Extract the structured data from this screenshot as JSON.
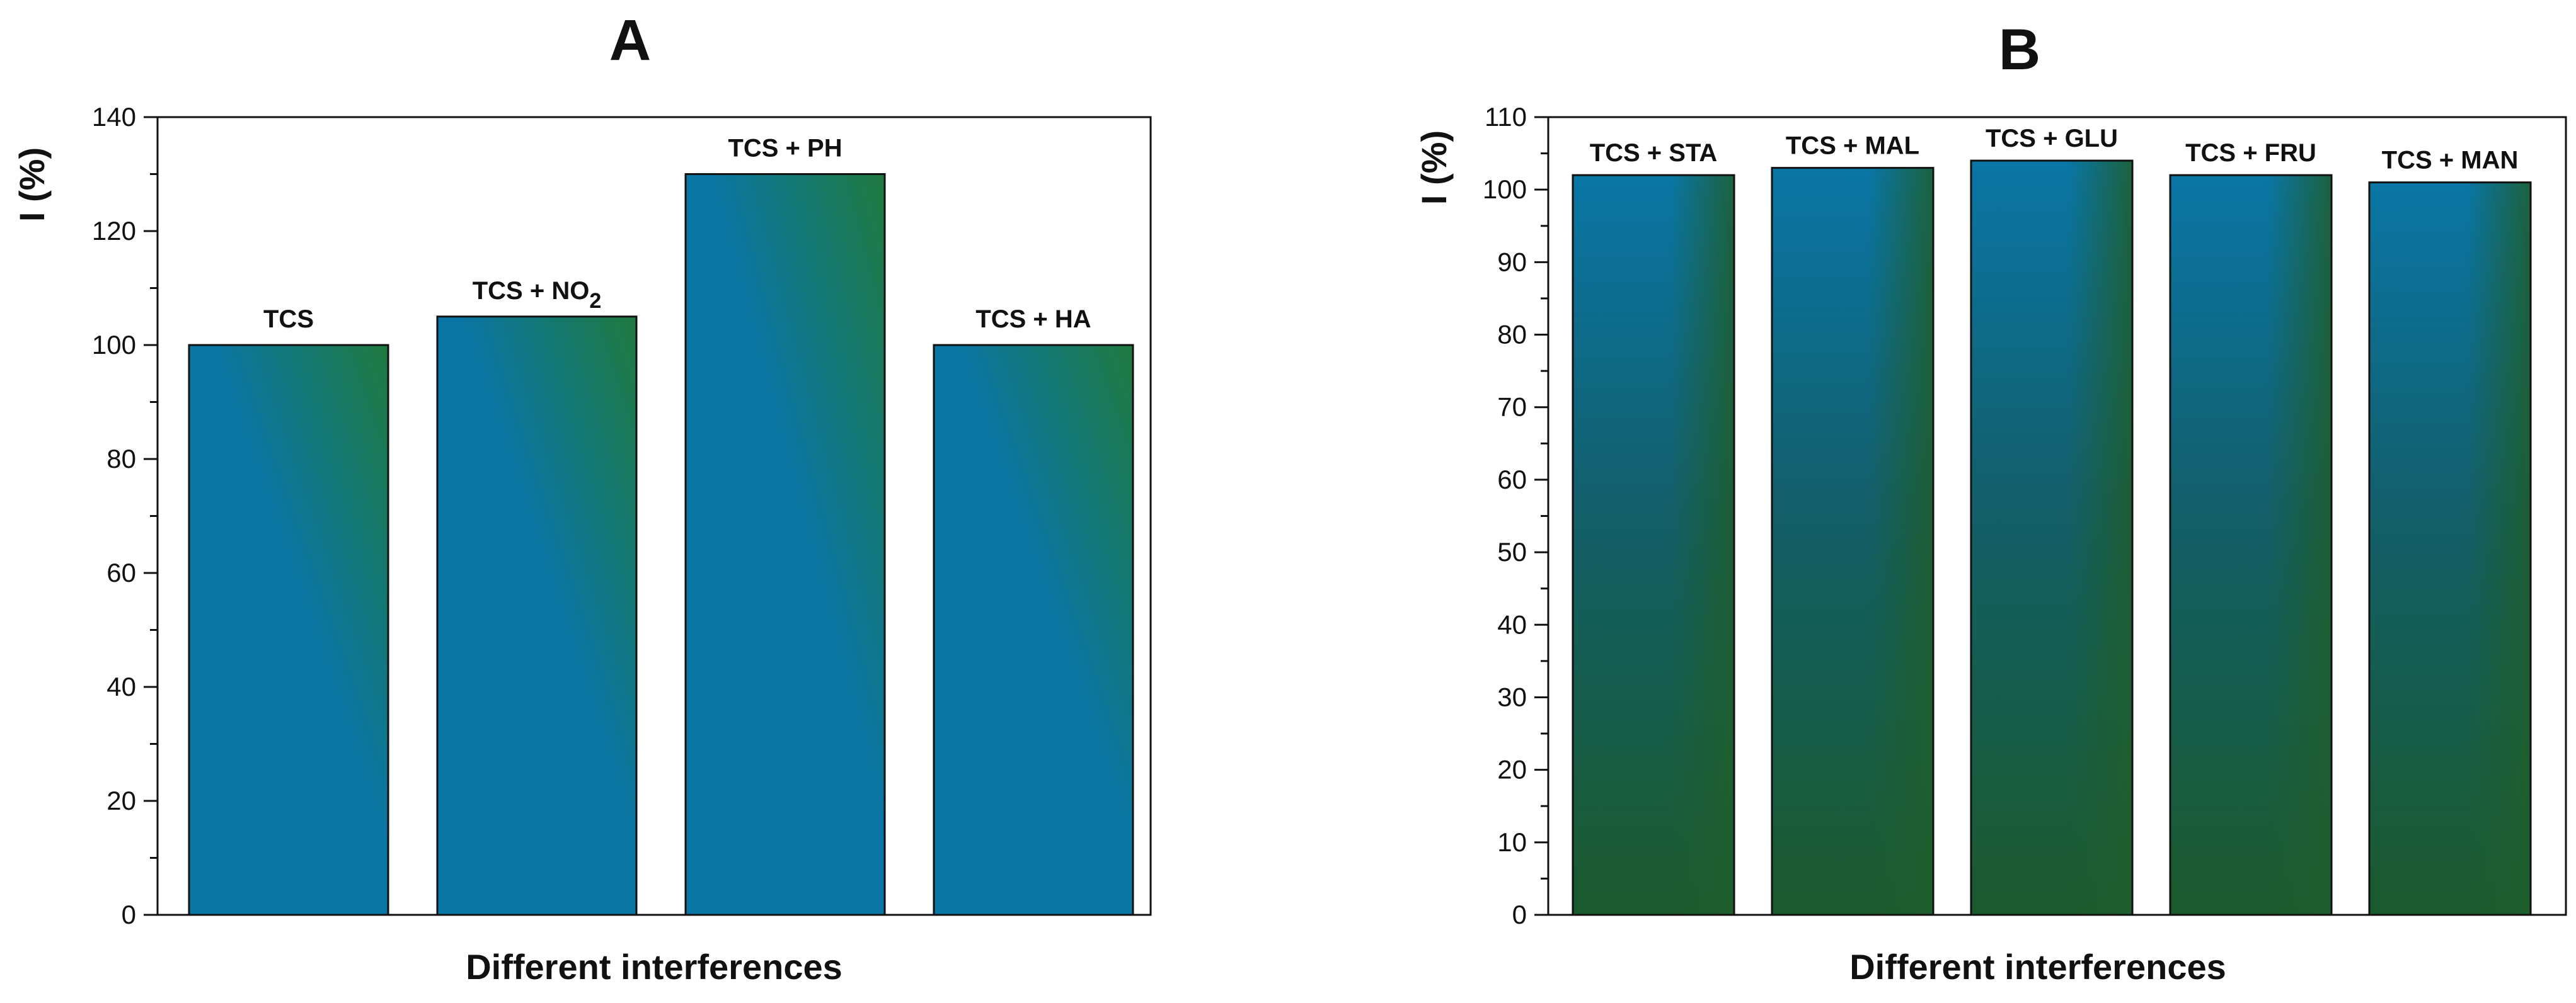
{
  "colors": {
    "gradA_start": "#0a76a6",
    "gradA_end": "#1f7a3e",
    "gradB_top": "#0a76a6",
    "gradB_bottom": "#1b5a2c",
    "gradB_side": "#1f5e2c"
  },
  "chart_data": [
    {
      "type": "bar",
      "panel": "A",
      "title": "A",
      "xlabel": "Different interferences",
      "ylabel": "I (%)",
      "ylim": [
        0,
        140
      ],
      "yticks": [
        0,
        20,
        40,
        60,
        80,
        100,
        120,
        140
      ],
      "categories": [
        "TCS",
        "TCS + NO2",
        "TCS + PH",
        "TCS + HA"
      ],
      "values": [
        100,
        105,
        130,
        100
      ],
      "bar_labels": [
        {
          "text": "TCS",
          "sub": ""
        },
        {
          "text": "TCS + NO",
          "sub": "2"
        },
        {
          "text": "TCS + PH",
          "sub": ""
        },
        {
          "text": "TCS + HA",
          "sub": ""
        }
      ]
    },
    {
      "type": "bar",
      "panel": "B",
      "title": "B",
      "xlabel": "Different interferences",
      "ylabel": "I (%)",
      "ylim": [
        0,
        110
      ],
      "yticks": [
        0,
        10,
        20,
        30,
        40,
        50,
        60,
        70,
        80,
        90,
        100,
        110
      ],
      "categories": [
        "TCS + STA",
        "TCS + MAL",
        "TCS + GLU",
        "TCS + FRU",
        "TCS + MAN"
      ],
      "values": [
        102,
        103,
        104,
        102,
        101
      ],
      "bar_labels": [
        {
          "text": "TCS + STA",
          "sub": ""
        },
        {
          "text": "TCS + MAL",
          "sub": ""
        },
        {
          "text": "TCS + GLU",
          "sub": ""
        },
        {
          "text": "TCS + FRU",
          "sub": ""
        },
        {
          "text": "TCS + MAN",
          "sub": ""
        }
      ]
    }
  ]
}
